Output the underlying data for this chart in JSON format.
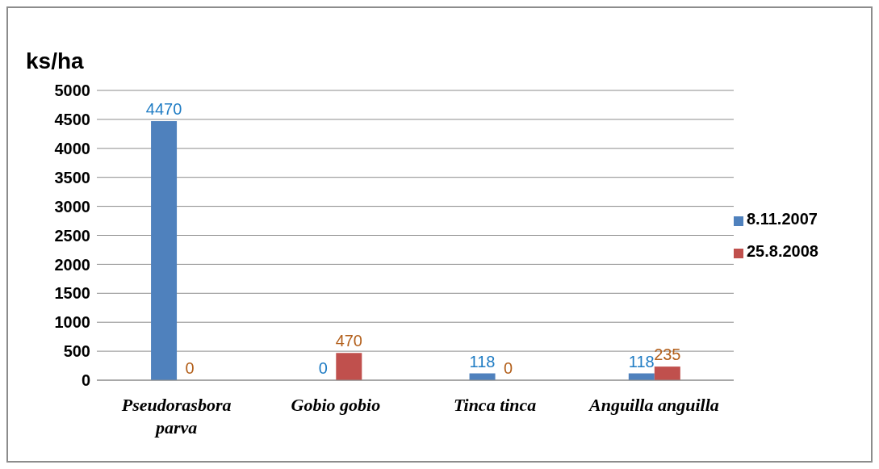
{
  "chart_data": {
    "type": "bar",
    "ylabel": "ks/ha",
    "categories": [
      "Pseudorasbora parva",
      "Gobio gobio",
      "Tinca tinca",
      "Anguilla anguilla"
    ],
    "series": [
      {
        "name": "8.11.2007",
        "color": "#4f81bd",
        "values": [
          4470,
          0,
          118,
          118
        ]
      },
      {
        "name": "25.8.2008",
        "color": "#c0504d",
        "values": [
          0,
          470,
          0,
          235
        ]
      }
    ],
    "ylim": [
      0,
      5000
    ],
    "yticks": [
      0,
      500,
      1000,
      1500,
      2000,
      2500,
      3000,
      3500,
      4000,
      4500,
      5000
    ],
    "grid": "y",
    "legend": "right",
    "data_labels": true
  }
}
